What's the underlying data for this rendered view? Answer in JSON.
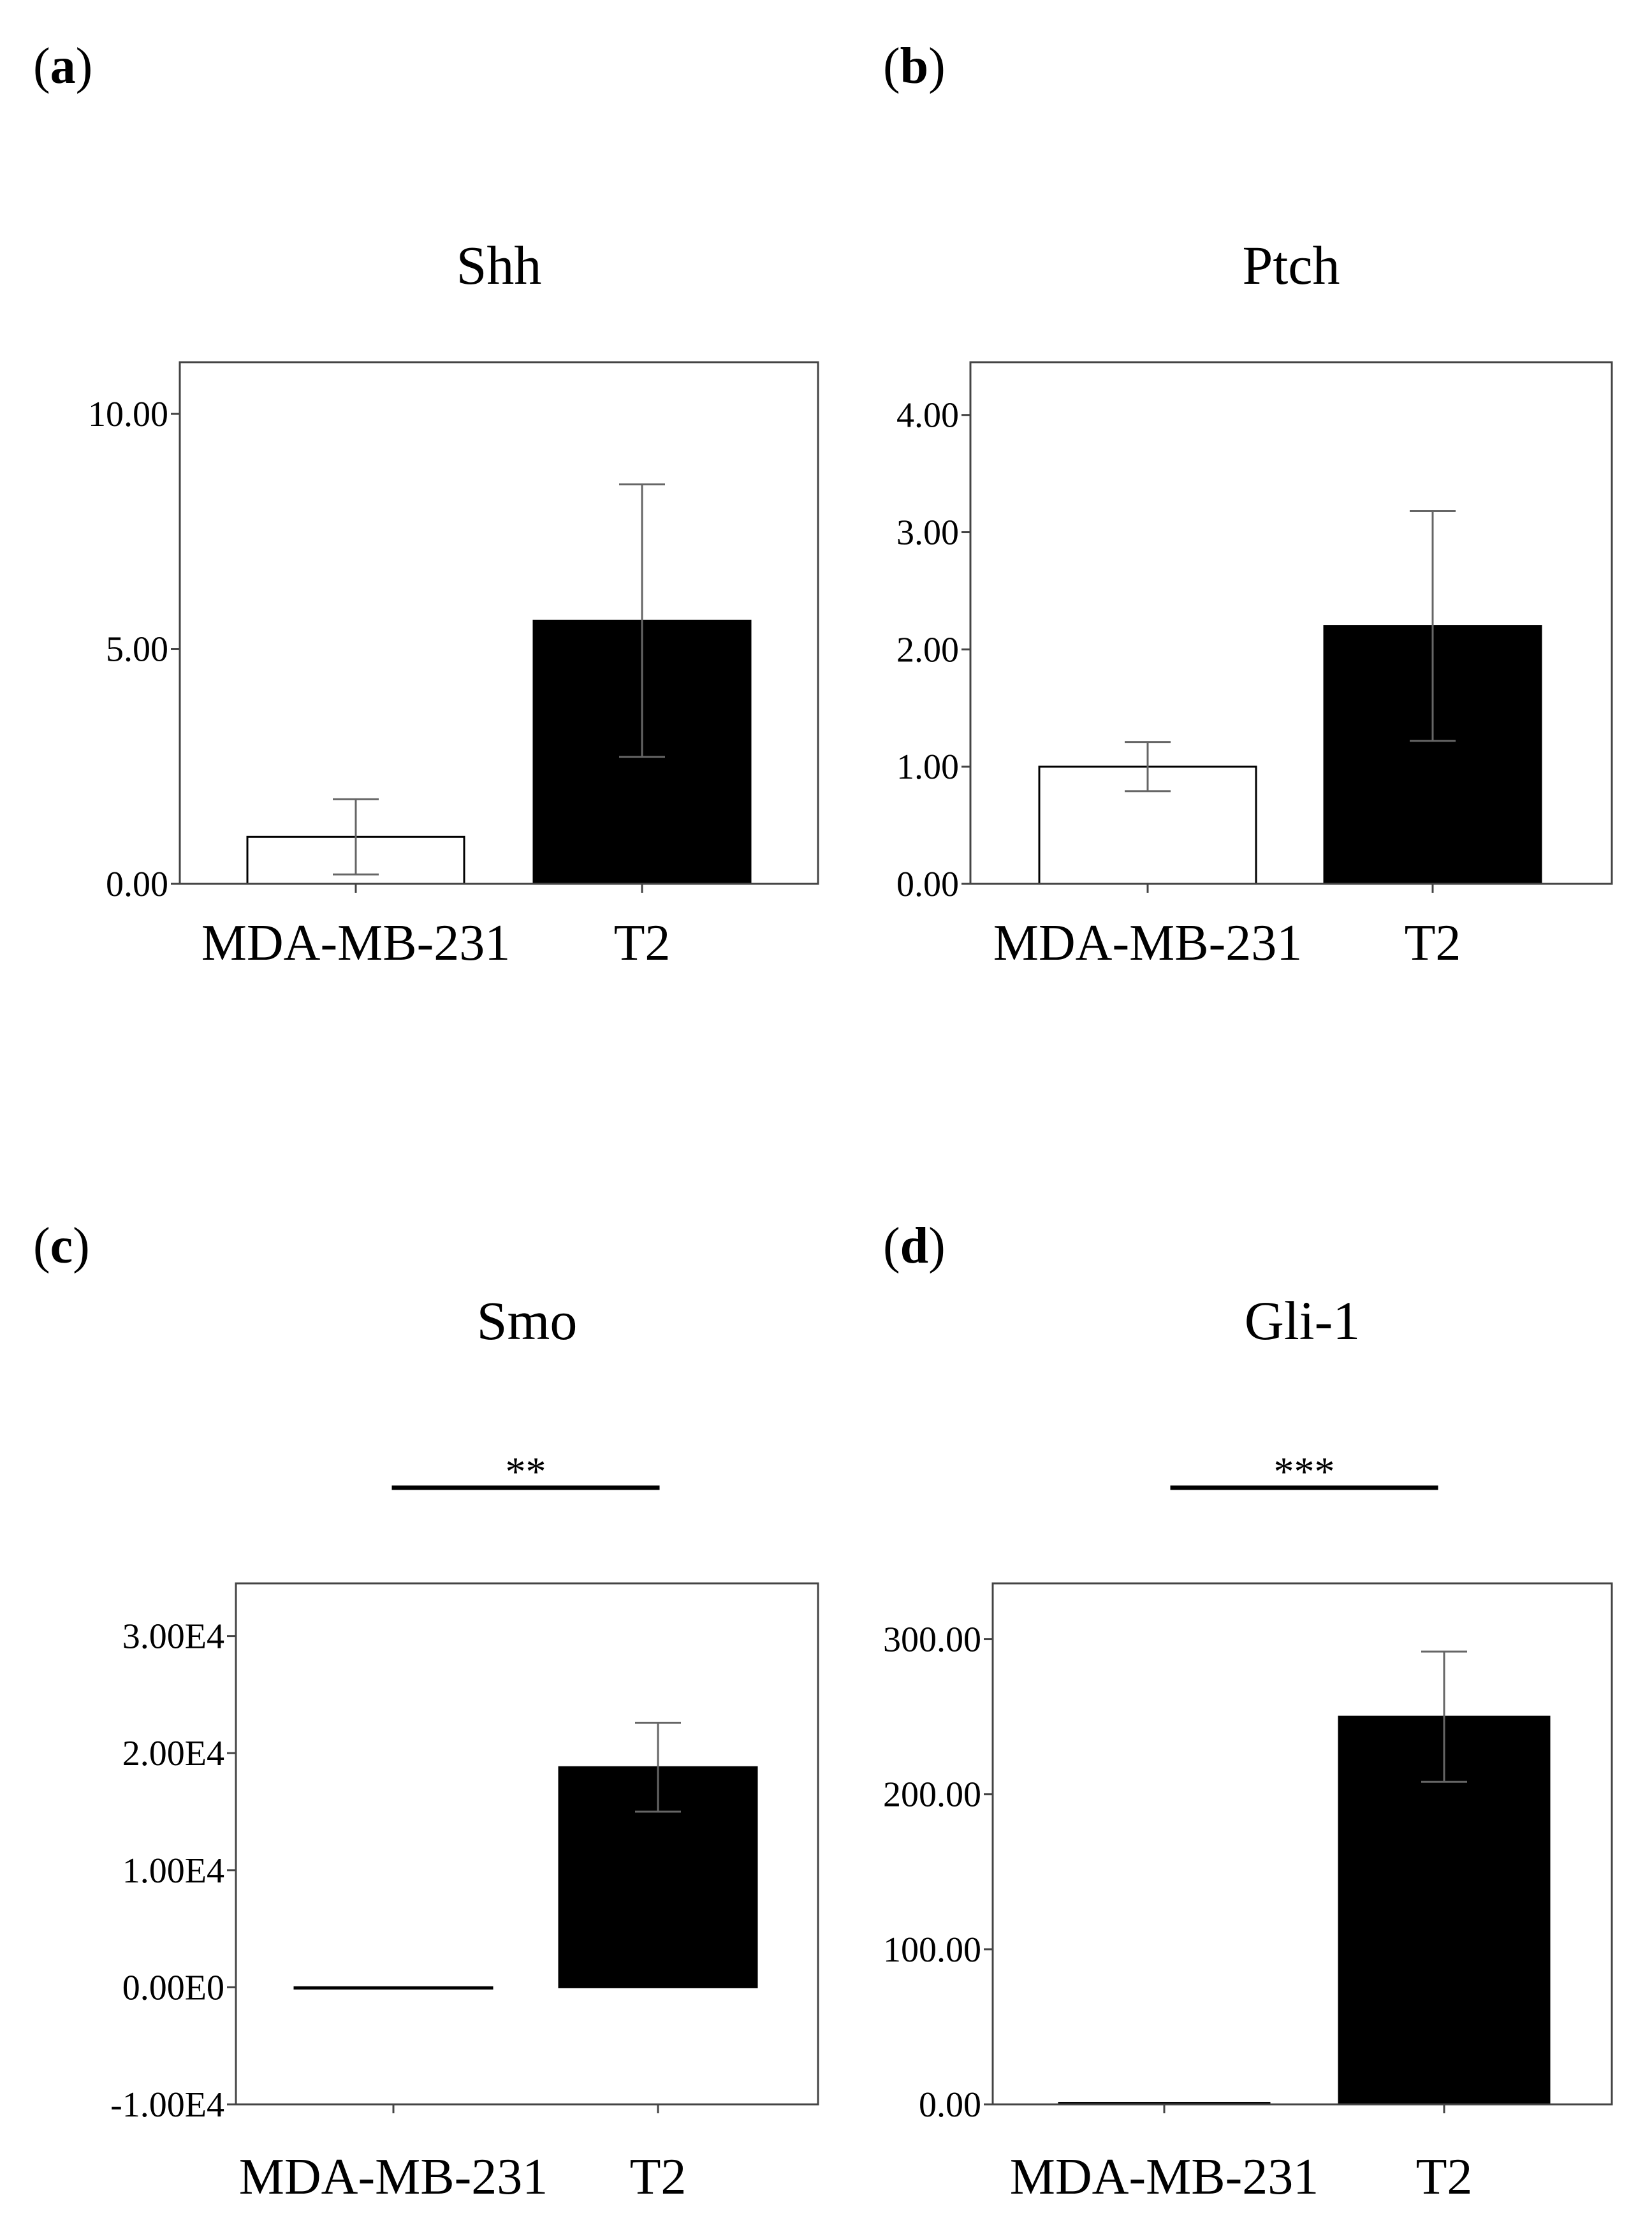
{
  "chart_data": [
    {
      "panel": "a",
      "type": "bar",
      "title": "Shh",
      "categories": [
        "MDA-MB-231",
        "T2"
      ],
      "values": [
        1.0,
        5.6
      ],
      "errors": [
        0.8,
        2.9
      ],
      "colors": [
        "#ffffff",
        "#000000"
      ],
      "ylim": [
        0,
        11.1
      ],
      "yticks": [
        0,
        5,
        10
      ],
      "ytick_labels": [
        "0.00",
        "5.00",
        "10.00"
      ],
      "xlabel": "",
      "ylabel": "",
      "significance": ""
    },
    {
      "panel": "b",
      "type": "bar",
      "title": "Ptch",
      "categories": [
        "MDA-MB-231",
        "T2"
      ],
      "values": [
        1.0,
        2.2
      ],
      "errors": [
        0.21,
        0.98
      ],
      "colors": [
        "#ffffff",
        "#000000"
      ],
      "ylim": [
        0,
        4.45
      ],
      "yticks": [
        0,
        1,
        2,
        3,
        4
      ],
      "ytick_labels": [
        "0.00",
        "1.00",
        "2.00",
        "3.00",
        "4.00"
      ],
      "xlabel": "",
      "ylabel": "",
      "significance": ""
    },
    {
      "panel": "c",
      "type": "bar",
      "title": "Smo",
      "categories": [
        "MDA-MB-231",
        "T2"
      ],
      "values": [
        1,
        18800
      ],
      "errors": [
        0,
        3800
      ],
      "colors": [
        "#ffffff",
        "#000000"
      ],
      "ylim": [
        -10000,
        34500
      ],
      "yticks": [
        -10000,
        0,
        10000,
        20000,
        30000
      ],
      "ytick_labels": [
        "-1.00E4",
        "0.00E0",
        "1.00E4",
        "2.00E4",
        "3.00E4"
      ],
      "xlabel": "",
      "ylabel": "",
      "significance": "**"
    },
    {
      "panel": "d",
      "type": "bar",
      "title": "Gli-1",
      "categories": [
        "MDA-MB-231",
        "T2"
      ],
      "values": [
        1,
        250
      ],
      "errors": [
        0,
        42
      ],
      "colors": [
        "#ffffff",
        "#000000"
      ],
      "ylim": [
        0,
        336
      ],
      "yticks": [
        0,
        100,
        200,
        300
      ],
      "ytick_labels": [
        "0.00",
        "100.00",
        "200.00",
        "300.00"
      ],
      "xlabel": "",
      "ylabel": "",
      "significance": "***"
    }
  ]
}
